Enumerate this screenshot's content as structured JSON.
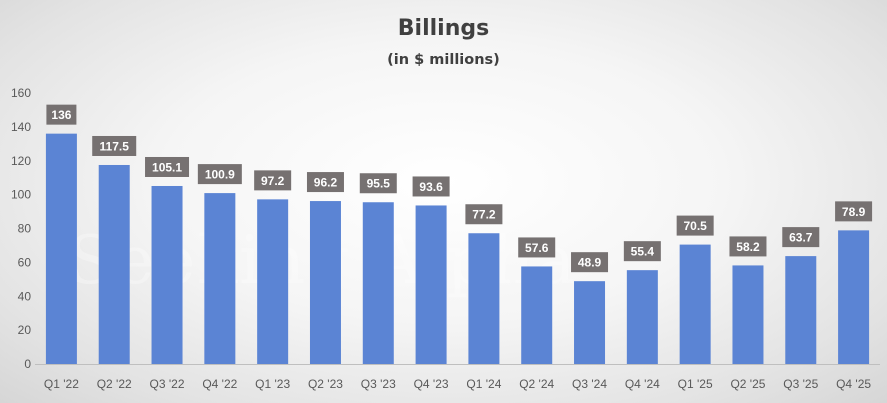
{
  "chart_data": {
    "type": "bar",
    "title": "Billings",
    "subtitle": "(in $ millions)",
    "xlabel": "",
    "ylabel": "",
    "ylim": [
      0,
      160
    ],
    "yticks": [
      0,
      20,
      40,
      60,
      80,
      100,
      120,
      140,
      160
    ],
    "grid": false,
    "categories": [
      "Q1 '22",
      "Q2 '22",
      "Q3 '22",
      "Q4 '22",
      "Q1 '23",
      "Q2 '23",
      "Q3 '23",
      "Q4 '23",
      "Q1 '24",
      "Q2 '24",
      "Q3 '24",
      "Q4 '24",
      "Q1 '25",
      "Q2 '25",
      "Q3 '25",
      "Q4 '25"
    ],
    "values": [
      136,
      117.5,
      105.1,
      100.9,
      97.2,
      96.2,
      95.5,
      93.6,
      77.2,
      57.6,
      48.9,
      55.4,
      70.5,
      58.2,
      63.7,
      78.9
    ],
    "data_labels": [
      "136",
      "117.5",
      "105.1",
      "100.9",
      "97.2",
      "96.2",
      "95.5",
      "93.6",
      "77.2",
      "57.6",
      "48.9",
      "55.4",
      "70.5",
      "58.2",
      "63.7",
      "78.9"
    ],
    "colors": {
      "bar": "#5b84d4",
      "label_box": "#767171",
      "label_text": "#ffffff",
      "tick_text": "#595959",
      "title_text": "#404040"
    }
  },
  "watermark": "Seeking Alpha"
}
